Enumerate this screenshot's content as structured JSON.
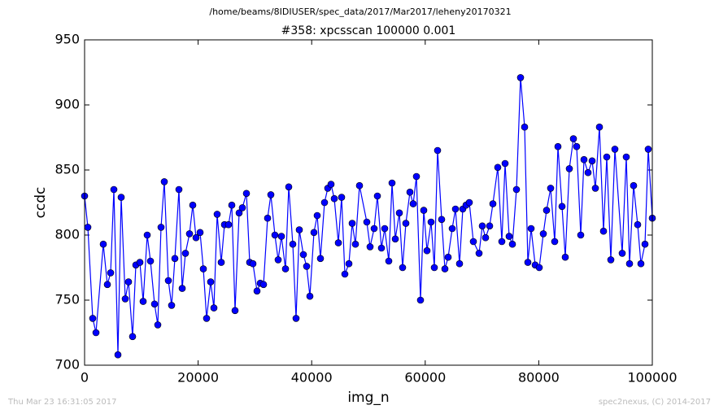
{
  "chart_data": {
    "type": "line",
    "suptitle": "/home/beams/8IDIUSER/spec_data/2017/Mar2017/leheny20170321",
    "title": "#358: xpcsscan 100000 0.001",
    "x_label": "img_n",
    "y_label": "ccdc",
    "footer_left": "Thu Mar 23 16:31:05 2017",
    "footer_right": "spec2nexus, (C) 2014-2017",
    "xlim": [
      0,
      100000
    ],
    "xticks": [
      0,
      20000,
      40000,
      60000,
      80000,
      100000
    ],
    "ylim": [
      700,
      950
    ],
    "yticks": [
      700,
      750,
      800,
      850,
      900,
      950
    ],
    "grid": false,
    "marker": "circle",
    "x": [
      0,
      573,
      1433,
      2006,
      3295,
      4011,
      4585,
      5158,
      5874,
      6447,
      7163,
      7736,
      8453,
      9026,
      9742,
      10315,
      11032,
      11605,
      12321,
      12894,
      13467,
      14040,
      14756,
      15330,
      15903,
      16619,
      17192,
      17765,
      18481,
      19054,
      19628,
      20344,
      20917,
      21490,
      22206,
      22779,
      23352,
      24069,
      24642,
      25358,
      25931,
      26504,
      27221,
      27794,
      28510,
      29083,
      29656,
      30372,
      30946,
      31519,
      32235,
      32808,
      33524,
      34097,
      34670,
      35387,
      35960,
      36676,
      37249,
      37822,
      38539,
      39112,
      39685,
      40401,
      40974,
      41547,
      42264,
      42837,
      43410,
      43983,
      44699,
      45272,
      45845,
      46562,
      47135,
      47708,
      48424,
      49713,
      50287,
      51003,
      51576,
      52292,
      52865,
      53582,
      54155,
      54728,
      55444,
      56017,
      56590,
      57307,
      57880,
      58453,
      59169,
      59742,
      60315,
      61032,
      61605,
      62178,
      62894,
      63467,
      64040,
      64756,
      65330,
      66046,
      66619,
      67192,
      67765,
      68481,
      69484,
      70057,
      70630,
      71347,
      71920,
      72779,
      73496,
      74069,
      74785,
      75358,
      76074,
      76791,
      77507,
      78080,
      78653,
      79370,
      80086,
      80802,
      81375,
      82092,
      82808,
      83381,
      84097,
      84670,
      85387,
      86103,
      86676,
      87393,
      87966,
      88682,
      89398,
      89971,
      90688,
      91404,
      91977,
      92693,
      93410,
      94699,
      95415,
      95989,
      96705,
      97421,
      97994,
      98711,
      99284,
      100000
    ],
    "series": [
      {
        "name": "ccdc",
        "color": "#0000ff",
        "values": [
          830,
          806,
          736,
          725,
          793,
          762,
          771,
          835,
          708,
          829,
          751,
          764,
          722,
          777,
          779,
          749,
          800,
          780,
          747,
          731,
          806,
          841,
          765,
          746,
          782,
          835,
          759,
          786,
          801,
          823,
          798,
          802,
          774,
          736,
          764,
          744,
          816,
          779,
          808,
          808,
          823,
          742,
          817,
          821,
          832,
          779,
          778,
          757,
          763,
          762,
          813,
          831,
          800,
          781,
          799,
          774,
          837,
          793,
          736,
          804,
          785,
          776,
          753,
          802,
          815,
          782,
          825,
          836,
          839,
          828,
          794,
          829,
          770,
          778,
          809,
          793,
          838,
          810,
          791,
          805,
          830,
          790,
          805,
          780,
          840,
          797,
          817,
          775,
          809,
          833,
          824,
          845,
          750,
          819,
          788,
          810,
          775,
          865,
          812,
          774,
          783,
          805,
          820,
          778,
          820,
          823,
          825,
          795,
          786,
          807,
          798,
          807,
          824,
          852,
          795,
          855,
          799,
          793,
          835,
          921,
          883,
          779,
          805,
          777,
          775,
          801,
          819,
          836,
          795,
          868,
          822,
          783,
          851,
          874,
          868,
          800,
          858,
          848,
          857,
          836,
          883,
          803,
          860,
          781,
          866,
          786,
          860,
          778,
          838,
          808,
          778,
          793,
          866,
          813
        ]
      }
    ]
  }
}
